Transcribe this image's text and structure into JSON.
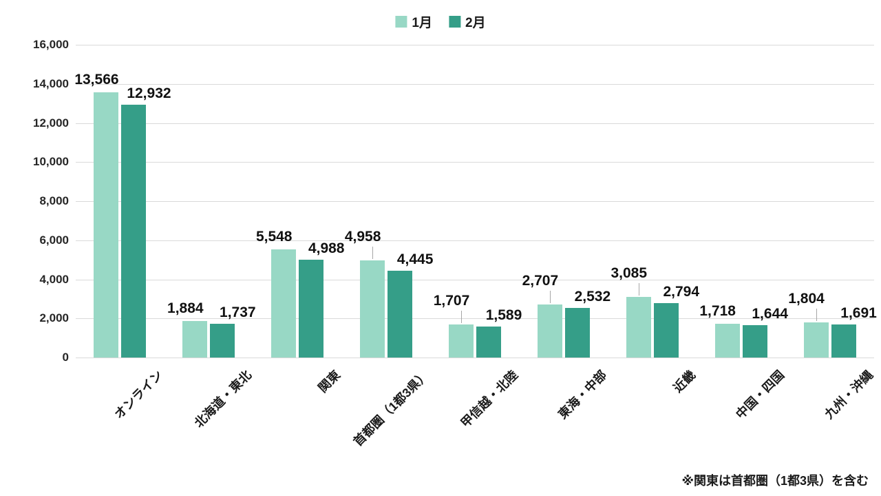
{
  "legend": {
    "items": [
      "1月",
      "2月"
    ]
  },
  "footnote": "※関東は首都圏（1都3県）を含む",
  "colors": {
    "series1": "#98d8c5",
    "series2": "#359e88",
    "gridline": "#d9d9d9",
    "leader_line": "#a6a6a6",
    "data_label": "#111111"
  },
  "chart_data": {
    "type": "bar",
    "title": "",
    "xlabel": "",
    "ylabel": "",
    "categories": [
      "オンライン",
      "北海道・東北",
      "関東",
      "首都圏（1都3県）",
      "甲信越・北陸",
      "東海・中部",
      "近畿",
      "中国・四国",
      "九州・沖縄"
    ],
    "series": [
      {
        "name": "1月",
        "color": "#98d8c5",
        "values": [
          13566,
          1884,
          5548,
          4958,
          1707,
          2707,
          3085,
          1718,
          1804
        ]
      },
      {
        "name": "2月",
        "color": "#359e88",
        "values": [
          12932,
          1737,
          4988,
          4445,
          1589,
          2532,
          2794,
          1644,
          1691
        ]
      }
    ],
    "ylim": [
      0,
      16000
    ],
    "ytick_step": 2000,
    "ytick_labels": [
      "0",
      "2,000",
      "4,000",
      "6,000",
      "8,000",
      "10,000",
      "12,000",
      "14,000",
      "16,000"
    ],
    "grid": true,
    "legend_position": "top-center",
    "data_labels": true,
    "label_leader_series1": [
      false,
      false,
      false,
      true,
      true,
      true,
      true,
      false,
      true
    ],
    "annotation": "※関東は首都圏（1都3県）を含む"
  }
}
